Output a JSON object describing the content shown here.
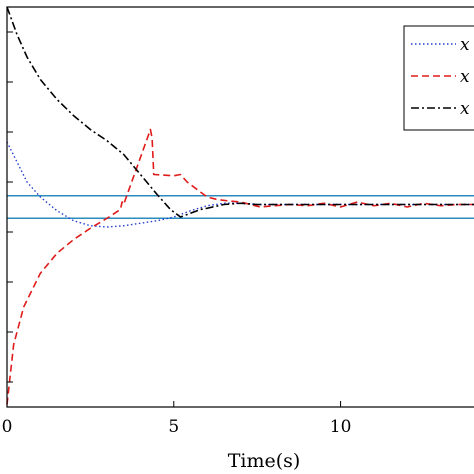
{
  "chart_data": {
    "type": "line",
    "xlabel": "Time(s)",
    "ylabel": "",
    "title": "",
    "xlim": [
      0,
      14
    ],
    "ylim": [
      -1.6,
      1.6
    ],
    "x_ticks": [
      0,
      5,
      10
    ],
    "x_tick_labels": [
      "0",
      "5",
      "10"
    ],
    "grid": false,
    "legend_position": "top-right",
    "legend_entries": [
      "x",
      "x",
      "x"
    ],
    "series": [
      {
        "name": "x",
        "style": "dotted",
        "color": "#1f3fd0",
        "points": [
          [
            0,
            0.52
          ],
          [
            0.3,
            0.36
          ],
          [
            0.6,
            0.2
          ],
          [
            1,
            0.08
          ],
          [
            1.5,
            -0.03
          ],
          [
            2,
            -0.11
          ],
          [
            2.5,
            -0.15
          ],
          [
            3,
            -0.16
          ],
          [
            3.5,
            -0.15
          ],
          [
            4,
            -0.13
          ],
          [
            4.5,
            -0.11
          ],
          [
            5,
            -0.08
          ],
          [
            5.5,
            -0.03
          ],
          [
            6,
            0.01
          ],
          [
            6.5,
            0.03
          ],
          [
            7,
            0.03
          ],
          [
            7.5,
            0.02
          ],
          [
            8,
            0.02
          ],
          [
            9,
            0.02
          ],
          [
            10,
            0.02
          ],
          [
            11,
            0.02
          ],
          [
            12,
            0.02
          ],
          [
            13,
            0.02
          ],
          [
            14,
            0.02
          ]
        ]
      },
      {
        "name": "x",
        "style": "dashed",
        "color": "#e01b1b",
        "points": [
          [
            0,
            -1.58
          ],
          [
            0.2,
            -1.1
          ],
          [
            0.5,
            -0.8
          ],
          [
            1,
            -0.53
          ],
          [
            1.5,
            -0.37
          ],
          [
            2,
            -0.26
          ],
          [
            2.5,
            -0.17
          ],
          [
            3,
            -0.09
          ],
          [
            3.4,
            -0.02
          ],
          [
            3.45,
            0.04
          ],
          [
            3.5,
            0.02
          ],
          [
            3.55,
            0.06
          ],
          [
            4.3,
            0.62
          ],
          [
            4.35,
            0.55
          ],
          [
            4.4,
            0.26
          ],
          [
            5,
            0.25
          ],
          [
            5.2,
            0.26
          ],
          [
            5.4,
            0.2
          ],
          [
            6,
            0.08
          ],
          [
            6.3,
            0.06
          ],
          [
            6.6,
            0.05
          ],
          [
            7,
            0.04
          ],
          [
            7.3,
            0.02
          ],
          [
            7.6,
            0.0
          ],
          [
            8,
            0.01
          ],
          [
            8.5,
            0.02
          ],
          [
            9,
            0.01
          ],
          [
            9.5,
            0.03
          ],
          [
            10,
            0.0
          ],
          [
            10.5,
            0.04
          ],
          [
            11,
            0.01
          ],
          [
            11.5,
            0.03
          ],
          [
            12,
            0.0
          ],
          [
            12.5,
            0.03
          ],
          [
            13,
            0.01
          ],
          [
            13.5,
            0.02
          ],
          [
            14,
            0.02
          ]
        ]
      },
      {
        "name": "x",
        "style": "dashdot",
        "color": "#000000",
        "points": [
          [
            0,
            1.6
          ],
          [
            0.3,
            1.38
          ],
          [
            0.6,
            1.2
          ],
          [
            1,
            1.02
          ],
          [
            1.5,
            0.86
          ],
          [
            2,
            0.73
          ],
          [
            2.5,
            0.62
          ],
          [
            3,
            0.53
          ],
          [
            3.5,
            0.42
          ],
          [
            4,
            0.26
          ],
          [
            4.5,
            0.1
          ],
          [
            4.9,
            -0.02
          ],
          [
            5.2,
            -0.08
          ],
          [
            5.4,
            -0.06
          ],
          [
            5.8,
            -0.02
          ],
          [
            6,
            -0.01
          ],
          [
            6.5,
            0.02
          ],
          [
            7,
            0.03
          ],
          [
            7.5,
            0.02
          ],
          [
            8,
            0.02
          ],
          [
            9,
            0.02
          ],
          [
            10,
            0.02
          ],
          [
            11,
            0.02
          ],
          [
            12,
            0.02
          ],
          [
            13,
            0.02
          ],
          [
            14,
            0.02
          ]
        ]
      }
    ],
    "reference_lines": [
      {
        "orientation": "horizontal",
        "y": 0.09,
        "color": "#2b8cbe"
      },
      {
        "orientation": "horizontal",
        "y": -0.09,
        "color": "#2b8cbe"
      }
    ]
  }
}
